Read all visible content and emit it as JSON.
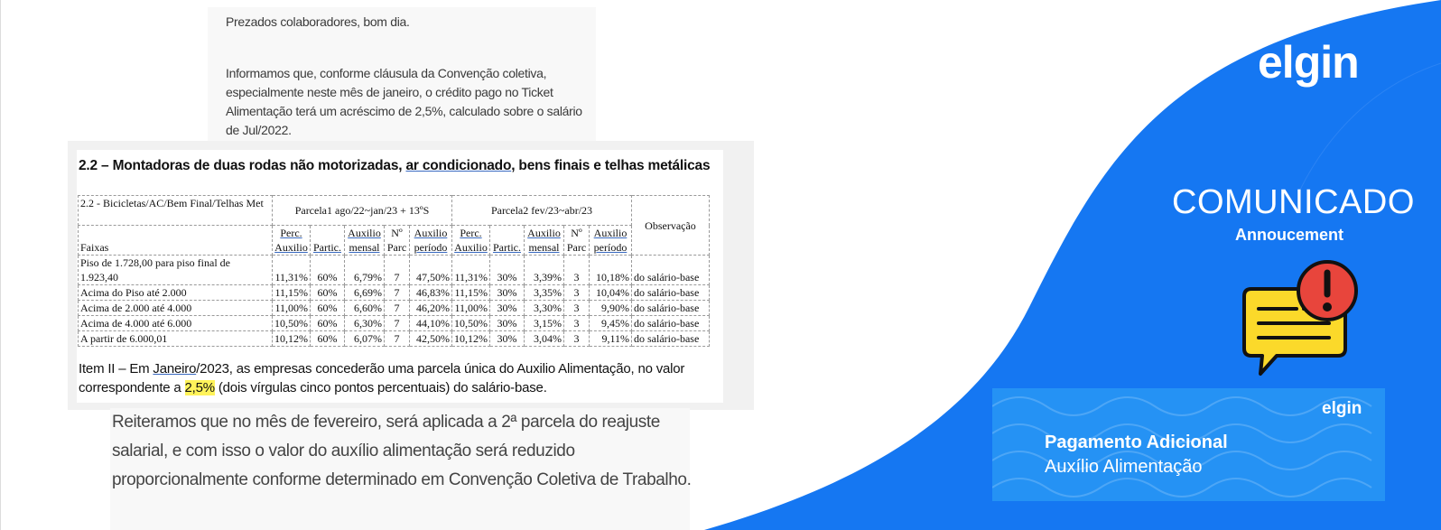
{
  "colors": {
    "brand_blue": "#1577f2",
    "card_blue": "#2592f4",
    "highlight": "#fff35a",
    "icon_yellow": "#fbd92a",
    "icon_red": "#e8453c"
  },
  "email": {
    "greeting": "Prezados colaboradores, bom dia.",
    "paragraph": "Informamos que, conforme cláusula da Convenção coletiva, especialmente neste mês de janeiro, o crédito pago no Ticket Alimentação terá um acréscimo de 2,5%, calculado sobre o salário de Jul/2022.",
    "closing": "Reiteramos que no mês de fevereiro, será aplicada a 2ª parcela do reajuste salarial, e com isso o valor do auxílio alimentação será reduzido proporcionalmente conforme determinado em Convenção Coletiva de Trabalho."
  },
  "document": {
    "title_pre": "2.2 – Montadoras de duas rodas não motorizadas, ",
    "title_link": "ar condicionado",
    "title_post": ", bens finais e telhas metálicas",
    "table": {
      "group_label": "2.2 - Bicicletas/AC/Bem Final/Telhas Met",
      "faixas_label": "Faixas",
      "parcela1": "Parcela1 ago/22~jan/23 + 13ºS",
      "parcela2": "Parcela2 fev/23~abr/23",
      "observacao": "Observação",
      "subheaders": [
        "Perc. Auxilio",
        "Partic.",
        "Auxilio mensal",
        "Nº Parc",
        "Auxilio período",
        "Perc. Auxilio",
        "Partic.",
        "Auxilio mensal",
        "Nº Parc",
        "Auxilio período"
      ],
      "rows": [
        {
          "faixa": "Piso de 1.728,00 para piso final de 1.923,40",
          "values": [
            "11,31%",
            "60%",
            "6,79%",
            "7",
            "47,50%",
            "11,31%",
            "30%",
            "3,39%",
            "3",
            "10,18%",
            "do salário-base"
          ]
        },
        {
          "faixa": "Acima do Piso até 2.000",
          "values": [
            "11,15%",
            "60%",
            "6,69%",
            "7",
            "46,83%",
            "11,15%",
            "30%",
            "3,35%",
            "3",
            "10,04%",
            "do salário-base"
          ]
        },
        {
          "faixa": "Acima de 2.000 até 4.000",
          "values": [
            "11,00%",
            "60%",
            "6,60%",
            "7",
            "46,20%",
            "11,00%",
            "30%",
            "3,30%",
            "3",
            "9,90%",
            "do salário-base"
          ]
        },
        {
          "faixa": "Acima de 4.000 até 6.000",
          "values": [
            "10,50%",
            "60%",
            "6,30%",
            "7",
            "44,10%",
            "10,50%",
            "30%",
            "3,15%",
            "3",
            "9,45%",
            "do salário-base"
          ]
        },
        {
          "faixa": "A partir de 6.000,01",
          "values": [
            "10,12%",
            "60%",
            "6,07%",
            "7",
            "42,50%",
            "10,12%",
            "30%",
            "3,04%",
            "3",
            "9,11%",
            "do salário-base"
          ]
        }
      ]
    },
    "item2_pre": "Item II – Em ",
    "item2_link": "Janeiro",
    "item2_mid": "/2023, as empresas concederão uma parcela única do Auxilio Alimentação, no valor correspondente a ",
    "item2_highlight": "2,5%",
    "item2_post": " (dois vírgulas cinco pontos percentuais) do salário-base."
  },
  "banner": {
    "logo": "elgin",
    "title": "COMUNICADO",
    "subtitle": "Annoucement",
    "icon": "warning-chat-icon",
    "card_logo": "elgin",
    "card_title": "Pagamento Adicional",
    "card_subtitle": "Auxílio Alimentação"
  }
}
